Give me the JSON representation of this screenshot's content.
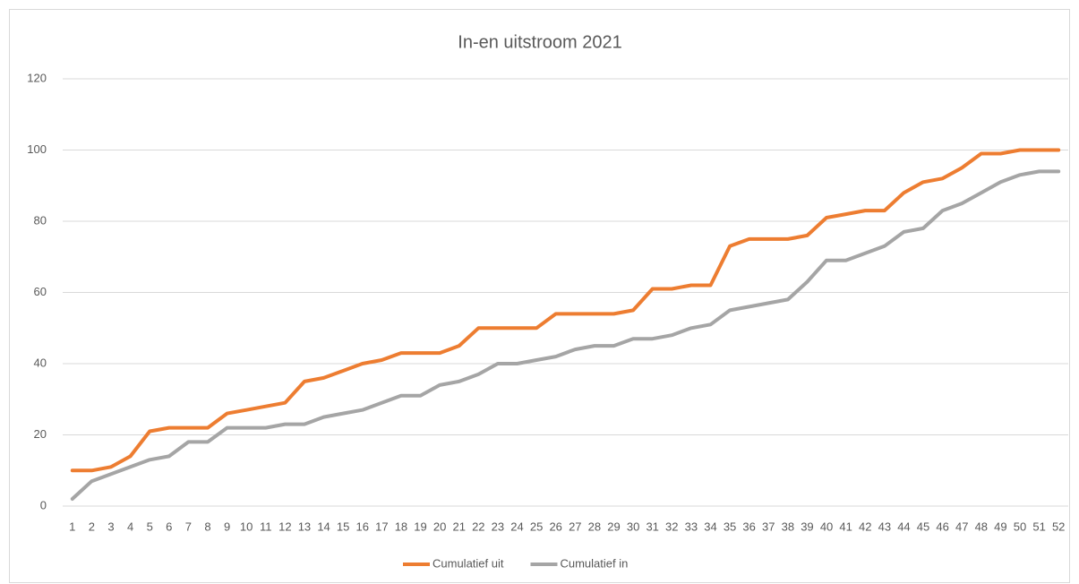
{
  "chart_data": {
    "type": "line",
    "title": "In-en uitstroom 2021",
    "categories": [
      "1",
      "2",
      "3",
      "4",
      "5",
      "6",
      "7",
      "8",
      "9",
      "10",
      "11",
      "12",
      "13",
      "14",
      "15",
      "16",
      "17",
      "18",
      "19",
      "20",
      "21",
      "22",
      "23",
      "24",
      "25",
      "26",
      "27",
      "28",
      "29",
      "30",
      "31",
      "32",
      "33",
      "34",
      "35",
      "36",
      "37",
      "38",
      "39",
      "40",
      "41",
      "42",
      "43",
      "44",
      "45",
      "46",
      "47",
      "48",
      "49",
      "50",
      "51",
      "52"
    ],
    "series": [
      {
        "name": "Cumulatief uit",
        "color": "#ed7d31",
        "values": [
          10,
          10,
          11,
          14,
          21,
          22,
          22,
          22,
          26,
          27,
          28,
          29,
          35,
          36,
          38,
          40,
          41,
          43,
          43,
          43,
          45,
          50,
          50,
          50,
          50,
          54,
          54,
          54,
          54,
          55,
          61,
          61,
          62,
          62,
          73,
          75,
          75,
          75,
          76,
          81,
          82,
          83,
          83,
          88,
          91,
          92,
          95,
          99,
          99,
          100,
          100,
          100
        ]
      },
      {
        "name": "Cumulatief in",
        "color": "#a5a5a5",
        "values": [
          2,
          7,
          9,
          11,
          13,
          14,
          18,
          18,
          22,
          22,
          22,
          23,
          23,
          25,
          26,
          27,
          29,
          31,
          31,
          34,
          35,
          37,
          40,
          40,
          41,
          42,
          44,
          45,
          45,
          47,
          47,
          48,
          50,
          51,
          55,
          56,
          57,
          58,
          63,
          69,
          69,
          71,
          73,
          77,
          78,
          83,
          85,
          88,
          91,
          93,
          94,
          94
        ]
      }
    ],
    "ylim": [
      0,
      120
    ],
    "yticks": [
      0,
      20,
      40,
      60,
      80,
      100,
      120
    ],
    "grid": true,
    "legend": "bottom"
  }
}
